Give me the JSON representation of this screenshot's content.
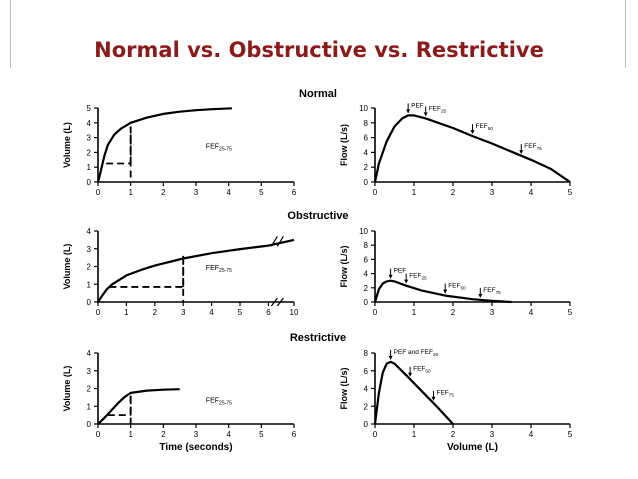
{
  "slide": {
    "title": "Normal vs. Obstructive vs. Restrictive",
    "title_color": "#8b1a1a"
  },
  "chart_data": [
    {
      "id": "normal-volume-time",
      "type": "line",
      "row_title": "Normal",
      "ylabel": "Volume (L)",
      "xlabel": "",
      "xlim": [
        0,
        6
      ],
      "ylim": [
        0,
        5
      ],
      "xticks": [
        0,
        1,
        2,
        3,
        4,
        5,
        6
      ],
      "yticks": [
        0,
        1,
        2,
        3,
        4,
        5
      ],
      "series": [
        {
          "x": [
            0,
            0.05,
            0.1,
            0.2,
            0.3,
            0.5,
            0.7,
            1.0,
            1.5,
            2,
            2.5,
            3,
            3.5,
            4.1
          ],
          "y": [
            0,
            0.4,
            0.9,
            1.8,
            2.5,
            3.2,
            3.6,
            4.0,
            4.35,
            4.6,
            4.75,
            4.85,
            4.92,
            4.98
          ]
        }
      ],
      "annotation": "FEF25-75",
      "fef_box": {
        "x1": 0.25,
        "x2": 1.0,
        "y1": 1.25,
        "y2": 3.75
      }
    },
    {
      "id": "normal-flow-volume",
      "type": "line",
      "row_title": "",
      "ylabel": "Flow (L/s)",
      "xlabel": "",
      "xlim": [
        0,
        5
      ],
      "ylim": [
        0,
        10
      ],
      "xticks": [
        0,
        1,
        2,
        3,
        4,
        5
      ],
      "yticks": [
        0,
        2,
        4,
        6,
        8,
        10
      ],
      "series": [
        {
          "x": [
            0,
            0.1,
            0.3,
            0.5,
            0.7,
            0.85,
            1.0,
            1.3,
            2,
            2.5,
            3,
            3.5,
            4,
            4.5,
            5
          ],
          "y": [
            0,
            2.5,
            5.5,
            7.5,
            8.6,
            9.0,
            9.0,
            8.6,
            7.3,
            6.2,
            5.2,
            4.1,
            3.0,
            1.8,
            0
          ]
        }
      ],
      "markers": [
        {
          "label": "PEF",
          "x": 0.85,
          "y": 9.0
        },
        {
          "label": "FEF25",
          "x": 1.3,
          "y": 8.6
        },
        {
          "label": "FEF50",
          "x": 2.5,
          "y": 6.2
        },
        {
          "label": "FEF75",
          "x": 3.75,
          "y": 3.5
        }
      ]
    },
    {
      "id": "obstructive-volume-time",
      "type": "line",
      "row_title": "Obstructive",
      "ylabel": "Volume (L)",
      "xlabel": "",
      "xlim": [
        0,
        10
      ],
      "ylim": [
        0,
        4
      ],
      "xticks": [
        0,
        1,
        2,
        3,
        4,
        5,
        6,
        10
      ],
      "yticks": [
        0,
        1,
        2,
        3,
        4
      ],
      "axis_break": true,
      "series": [
        {
          "x": [
            0,
            0.1,
            0.3,
            0.5,
            1,
            1.5,
            2,
            3,
            4,
            5,
            6,
            10
          ],
          "y": [
            0,
            0.25,
            0.7,
            1.0,
            1.5,
            1.8,
            2.05,
            2.45,
            2.75,
            2.98,
            3.18,
            3.5
          ]
        }
      ],
      "annotation": "FEF25-75",
      "fef_box": {
        "x1": 0.4,
        "x2": 3.0,
        "y1": 0.85,
        "y2": 2.6
      }
    },
    {
      "id": "obstructive-flow-volume",
      "type": "line",
      "row_title": "",
      "ylabel": "Flow (L/s)",
      "xlabel": "",
      "xlim": [
        0,
        5
      ],
      "ylim": [
        0,
        10
      ],
      "xticks": [
        0,
        1,
        2,
        3,
        4,
        5
      ],
      "yticks": [
        0,
        2,
        4,
        6,
        8,
        10
      ],
      "series": [
        {
          "x": [
            0,
            0.1,
            0.2,
            0.3,
            0.4,
            0.5,
            0.8,
            1.2,
            1.8,
            2.5,
            3,
            3.5
          ],
          "y": [
            0,
            1.8,
            2.6,
            2.9,
            3.0,
            2.9,
            2.3,
            1.6,
            0.9,
            0.4,
            0.15,
            0
          ]
        }
      ],
      "markers": [
        {
          "label": "PEF",
          "x": 0.4,
          "y": 3.0
        },
        {
          "label": "FEF25",
          "x": 0.8,
          "y": 2.3
        },
        {
          "label": "FEF50",
          "x": 1.8,
          "y": 0.9
        },
        {
          "label": "FEF75",
          "x": 2.7,
          "y": 0.3
        }
      ]
    },
    {
      "id": "restrictive-volume-time",
      "type": "line",
      "row_title": "Restrictive",
      "ylabel": "Volume (L)",
      "xlabel": "Time (seconds)",
      "xlim": [
        0,
        6
      ],
      "ylim": [
        0,
        4
      ],
      "xticks": [
        0,
        1,
        2,
        3,
        4,
        5,
        6
      ],
      "yticks": [
        0,
        1,
        2,
        3,
        4
      ],
      "series": [
        {
          "x": [
            0,
            0.2,
            0.4,
            0.6,
            0.8,
            1.0,
            1.5,
            2.0,
            2.5
          ],
          "y": [
            0,
            0.35,
            0.75,
            1.15,
            1.5,
            1.75,
            1.88,
            1.93,
            1.96
          ]
        }
      ],
      "annotation": "FEF25-75",
      "fef_box": {
        "x1": 0.3,
        "x2": 1.0,
        "y1": 0.5,
        "y2": 1.6
      }
    },
    {
      "id": "restrictive-flow-volume",
      "type": "line",
      "row_title": "",
      "ylabel": "Flow (L/s)",
      "xlabel": "Volume (L)",
      "xlim": [
        0,
        5
      ],
      "ylim": [
        0,
        8
      ],
      "xticks": [
        0,
        1,
        2,
        3,
        4,
        5
      ],
      "yticks": [
        0,
        2,
        4,
        6,
        8
      ],
      "series": [
        {
          "x": [
            0,
            0.1,
            0.2,
            0.3,
            0.4,
            0.5,
            0.8,
            1.2,
            1.6,
            2.0
          ],
          "y": [
            0,
            3.5,
            5.8,
            6.8,
            7.0,
            6.8,
            5.5,
            3.7,
            1.9,
            0
          ]
        }
      ],
      "markers": [
        {
          "label": "PEF and FEF25",
          "x": 0.4,
          "y": 7.0
        },
        {
          "label": "FEF50",
          "x": 0.9,
          "y": 5.1
        },
        {
          "label": "FEF75",
          "x": 1.5,
          "y": 2.4
        }
      ]
    }
  ]
}
